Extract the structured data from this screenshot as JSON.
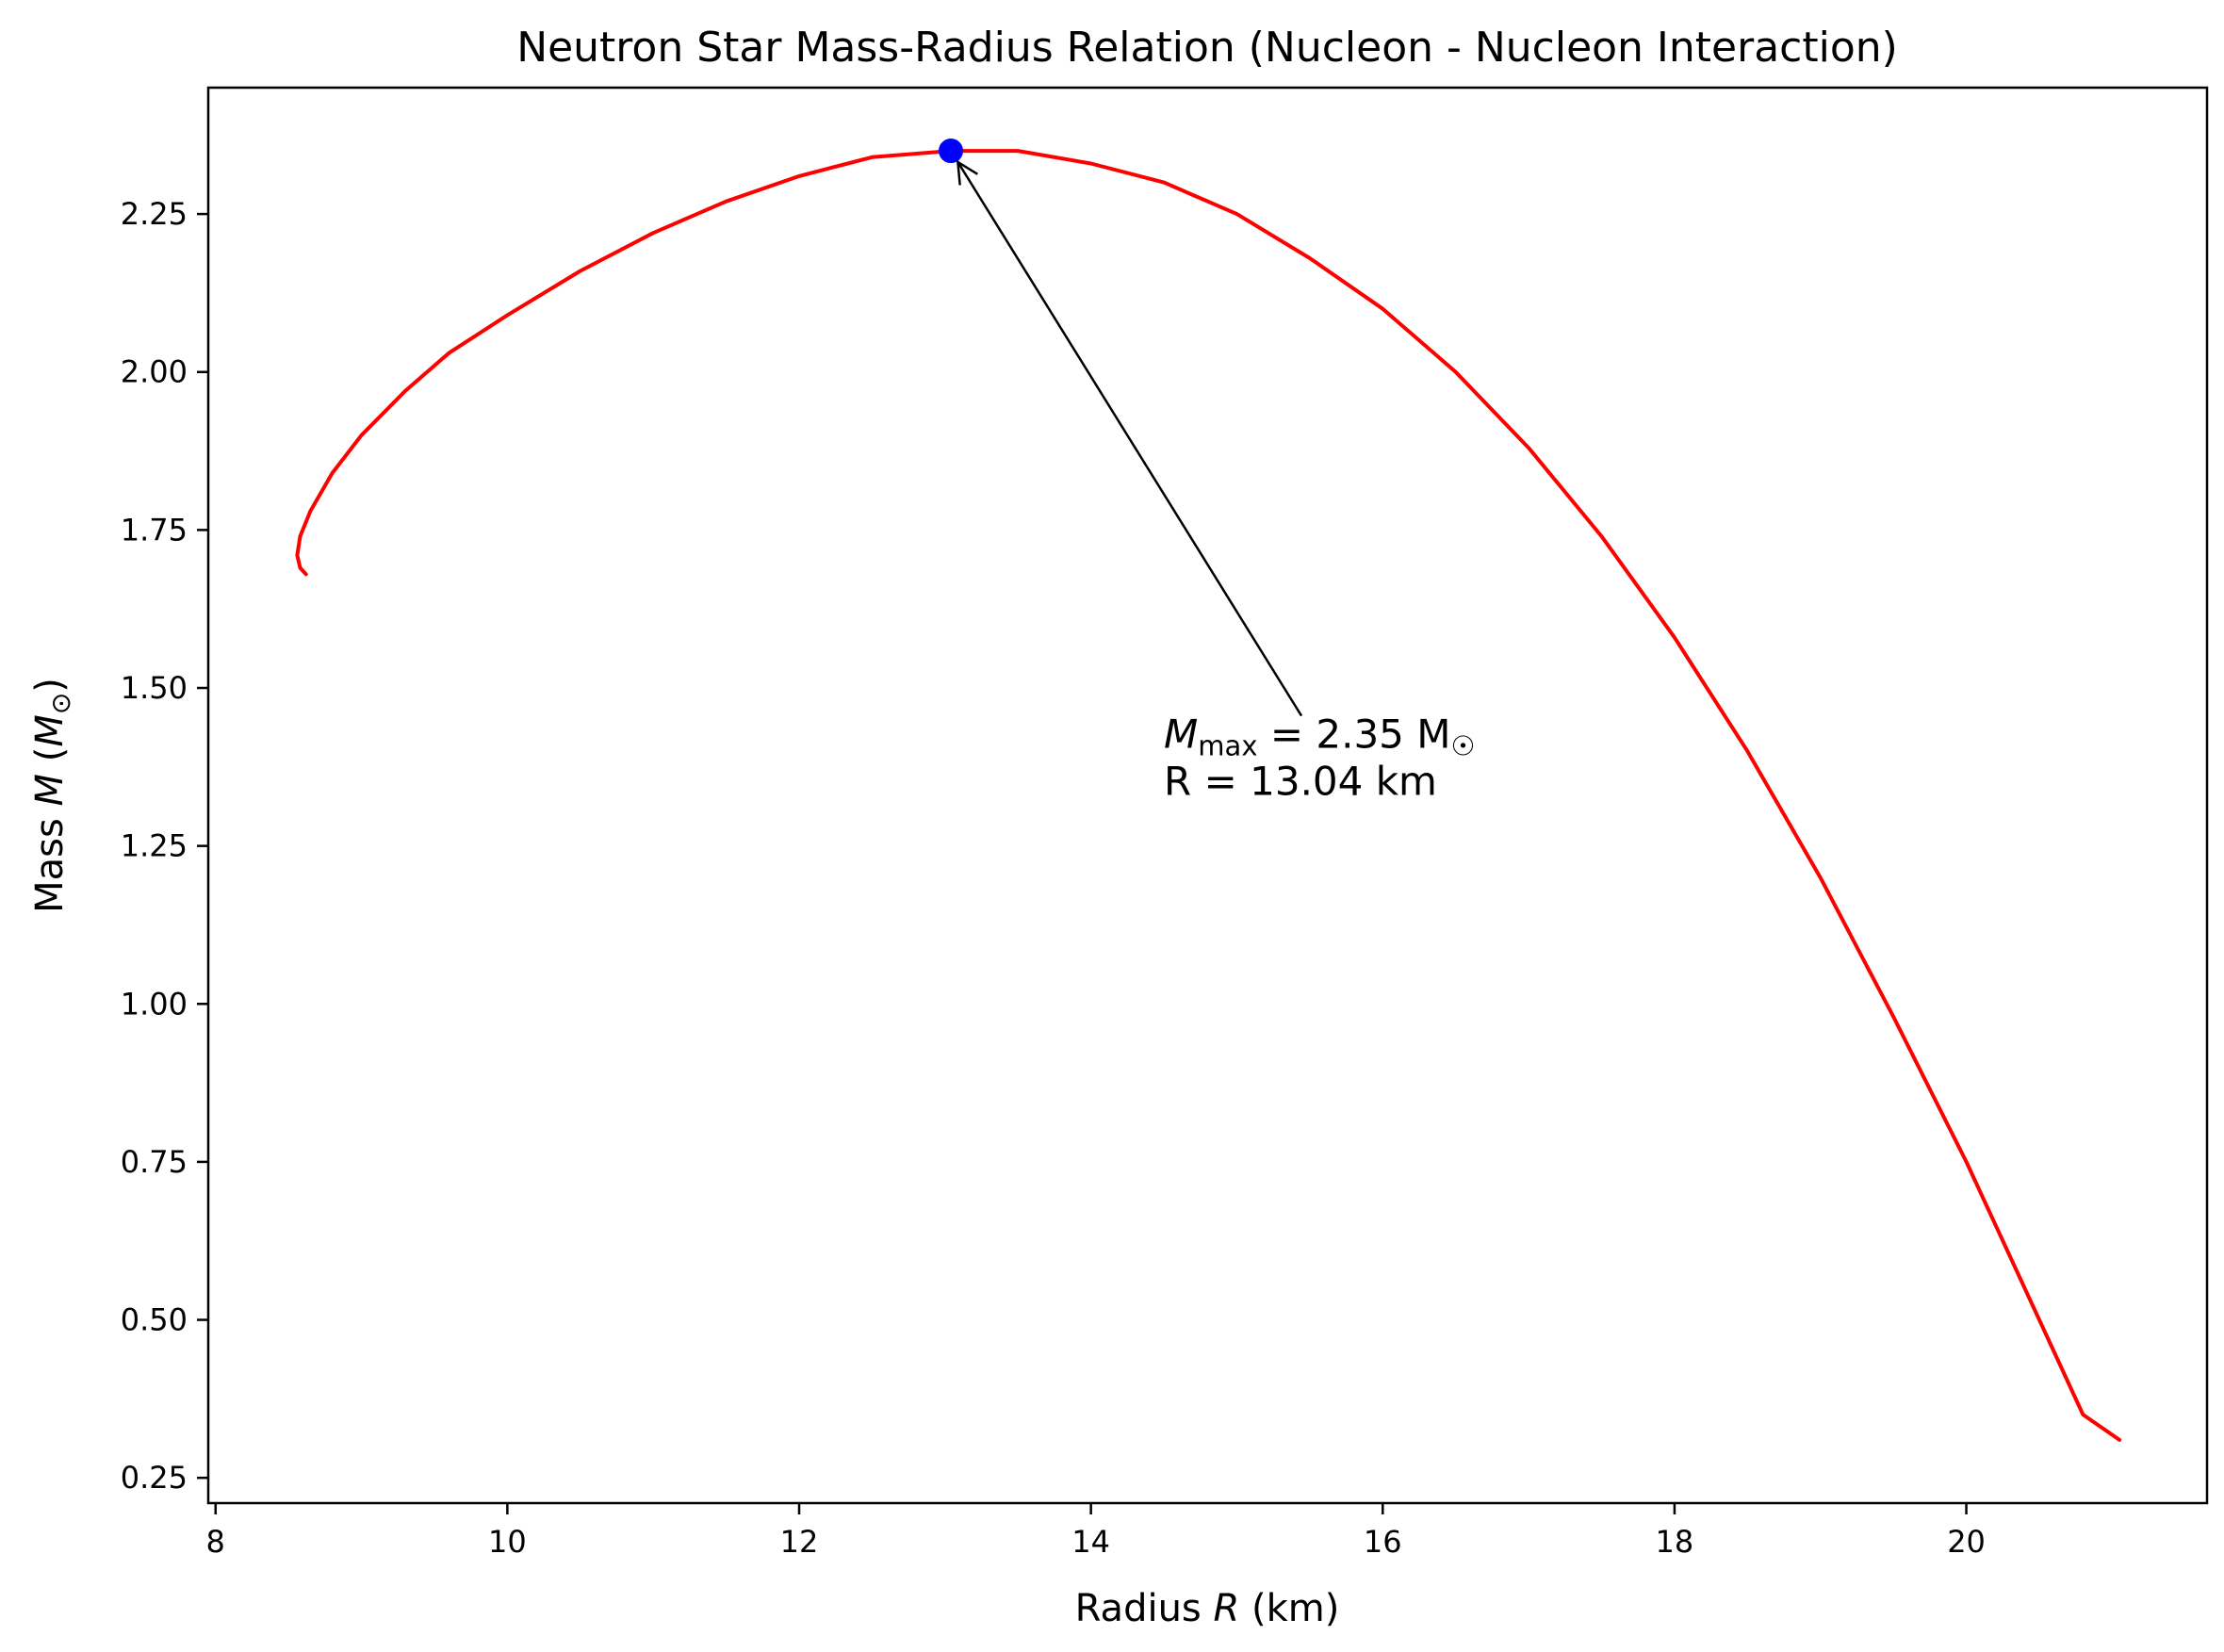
{
  "chart_data": {
    "type": "line",
    "title": "Neutron Star Mass-Radius Relation (Nucleon - Nucleon Interaction)",
    "xlabel": "Radius R (km)",
    "ylabel": "Mass M (M☉)",
    "xlim": [
      7.95,
      21.65
    ],
    "ylim": [
      0.21,
      2.45
    ],
    "xticks": [
      8,
      10,
      12,
      14,
      16,
      18,
      20
    ],
    "yticks": [
      0.25,
      0.5,
      0.75,
      1.0,
      1.25,
      1.5,
      1.75,
      2.0,
      2.25
    ],
    "grid": false,
    "series": [
      {
        "color": "#ff0000",
        "x": [
          8.62,
          8.58,
          8.56,
          8.58,
          8.65,
          8.8,
          9.0,
          9.3,
          9.6,
          10.0,
          10.5,
          11.0,
          11.5,
          12.0,
          12.5,
          13.04,
          13.5,
          14.0,
          14.5,
          15.0,
          15.5,
          16.0,
          16.5,
          17.0,
          17.5,
          18.0,
          18.5,
          19.0,
          19.5,
          20.0,
          20.5,
          20.8,
          21.05
        ],
        "y": [
          1.68,
          1.69,
          1.71,
          1.74,
          1.78,
          1.84,
          1.9,
          1.97,
          2.03,
          2.09,
          2.16,
          2.22,
          2.27,
          2.31,
          2.34,
          2.35,
          2.35,
          2.33,
          2.3,
          2.25,
          2.18,
          2.1,
          2.0,
          1.88,
          1.74,
          1.58,
          1.4,
          1.2,
          0.98,
          0.75,
          0.5,
          0.35,
          0.31
        ]
      }
    ],
    "marker": {
      "x": 13.04,
      "y": 2.35,
      "color": "#0000ff"
    },
    "annotation": {
      "line1": "M",
      "line1_sub": "max",
      "line1_rest": " = 2.35 M",
      "line1_sun": "☉",
      "line2": "R = 13.04 km",
      "text_x": 14.5,
      "text_y": 1.42
    }
  }
}
